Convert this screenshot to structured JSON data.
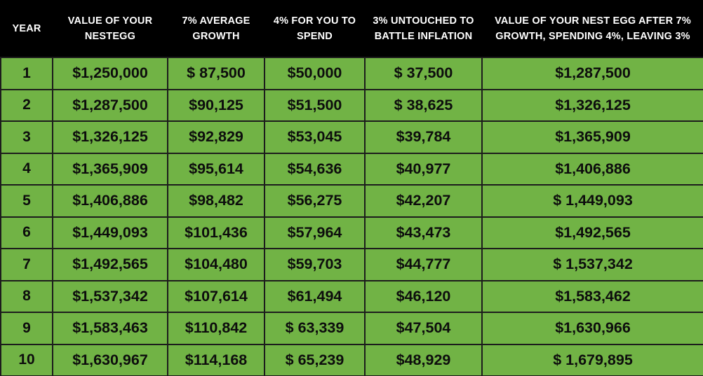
{
  "table": {
    "headers": [
      "YEAR",
      "VALUE OF YOUR NESTEGG",
      "7% AVERAGE GROWTH",
      "4% FOR YOU TO SPEND",
      "3% UNTOUCHED TO BATTLE INFLATION",
      "VALUE OF YOUR NEST EGG AFTER 7% GROWTH, SPENDING 4%, LEAVING 3%"
    ],
    "header_lines": [
      [
        "YEAR"
      ],
      [
        "VALUE OF YOUR",
        "NESTEGG"
      ],
      [
        "7% AVERAGE",
        "GROWTH"
      ],
      [
        "4% FOR YOU TO",
        "SPEND"
      ],
      [
        "3% UNTOUCHED TO",
        "BATTLE INFLATION"
      ],
      [
        "VALUE OF YOUR NEST EGG AFTER 7%",
        "GROWTH, SPENDING 4%, LEAVING 3%"
      ]
    ],
    "rows": [
      [
        "1",
        "$1,250,000",
        "$ 87,500",
        "$50,000",
        "$ 37,500",
        "$1,287,500"
      ],
      [
        "2",
        "$1,287,500",
        "$90,125",
        "$51,500",
        "$ 38,625",
        "$1,326,125"
      ],
      [
        "3",
        "$1,326,125",
        "$92,829",
        "$53,045",
        "$39,784",
        "$1,365,909"
      ],
      [
        "4",
        "$1,365,909",
        "$95,614",
        "$54,636",
        "$40,977",
        "$1,406,886"
      ],
      [
        "5",
        "$1,406,886",
        "$98,482",
        "$56,275",
        "$42,207",
        "$ 1,449,093"
      ],
      [
        "6",
        "$1,449,093",
        "$101,436",
        "$57,964",
        "$43,473",
        "$1,492,565"
      ],
      [
        "7",
        "$1,492,565",
        "$104,480",
        "$59,703",
        "$44,777",
        "$ 1,537,342"
      ],
      [
        "8",
        "$1,537,342",
        "$107,614",
        "$61,494",
        "$46,120",
        "$1,583,462"
      ],
      [
        "9",
        "$1,583,463",
        "$110,842",
        "$ 63,339",
        "$47,504",
        "$1,630,966"
      ],
      [
        "10",
        "$1,630,967",
        "$114,168",
        "$ 65,239",
        "$48,929",
        "$ 1,679,895"
      ]
    ]
  },
  "colors": {
    "header_background": "#000000",
    "header_text": "#ffffff",
    "cell_background": "#71b345",
    "cell_text": "#0d0d0d",
    "grid_lines": "#1c1c1c"
  }
}
